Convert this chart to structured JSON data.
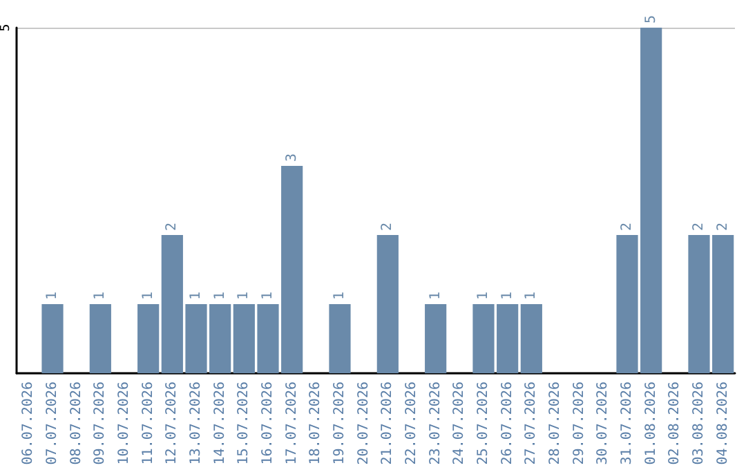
{
  "chart_data": {
    "type": "bar",
    "categories": [
      "06.07.2026",
      "07.07.2026",
      "08.07.2026",
      "09.07.2026",
      "10.07.2026",
      "11.07.2026",
      "12.07.2026",
      "13.07.2026",
      "14.07.2026",
      "15.07.2026",
      "16.07.2026",
      "17.07.2026",
      "18.07.2026",
      "19.07.2026",
      "20.07.2026",
      "21.07.2026",
      "22.07.2026",
      "23.07.2026",
      "24.07.2026",
      "25.07.2026",
      "26.07.2026",
      "27.07.2026",
      "28.07.2026",
      "29.07.2026",
      "30.07.2026",
      "31.07.2026",
      "01.08.2026",
      "02.08.2026",
      "03.08.2026",
      "04.08.2026"
    ],
    "values": [
      0,
      1,
      0,
      1,
      0,
      1,
      2,
      1,
      1,
      1,
      1,
      3,
      0,
      1,
      0,
      2,
      0,
      1,
      0,
      1,
      1,
      1,
      0,
      0,
      0,
      2,
      5,
      0,
      2,
      2
    ],
    "value_labels": [
      null,
      "1",
      null,
      "1",
      null,
      "1",
      "2",
      "1",
      "1",
      "1",
      "1",
      "3",
      null,
      "1",
      null,
      "2",
      null,
      "1",
      null,
      "1",
      "1",
      "1",
      null,
      null,
      null,
      "2",
      "5",
      null,
      "2",
      "2"
    ],
    "color": "#6a8aaa",
    "ylim": [
      0,
      5
    ],
    "yticks": [
      5
    ],
    "grid": "y"
  }
}
